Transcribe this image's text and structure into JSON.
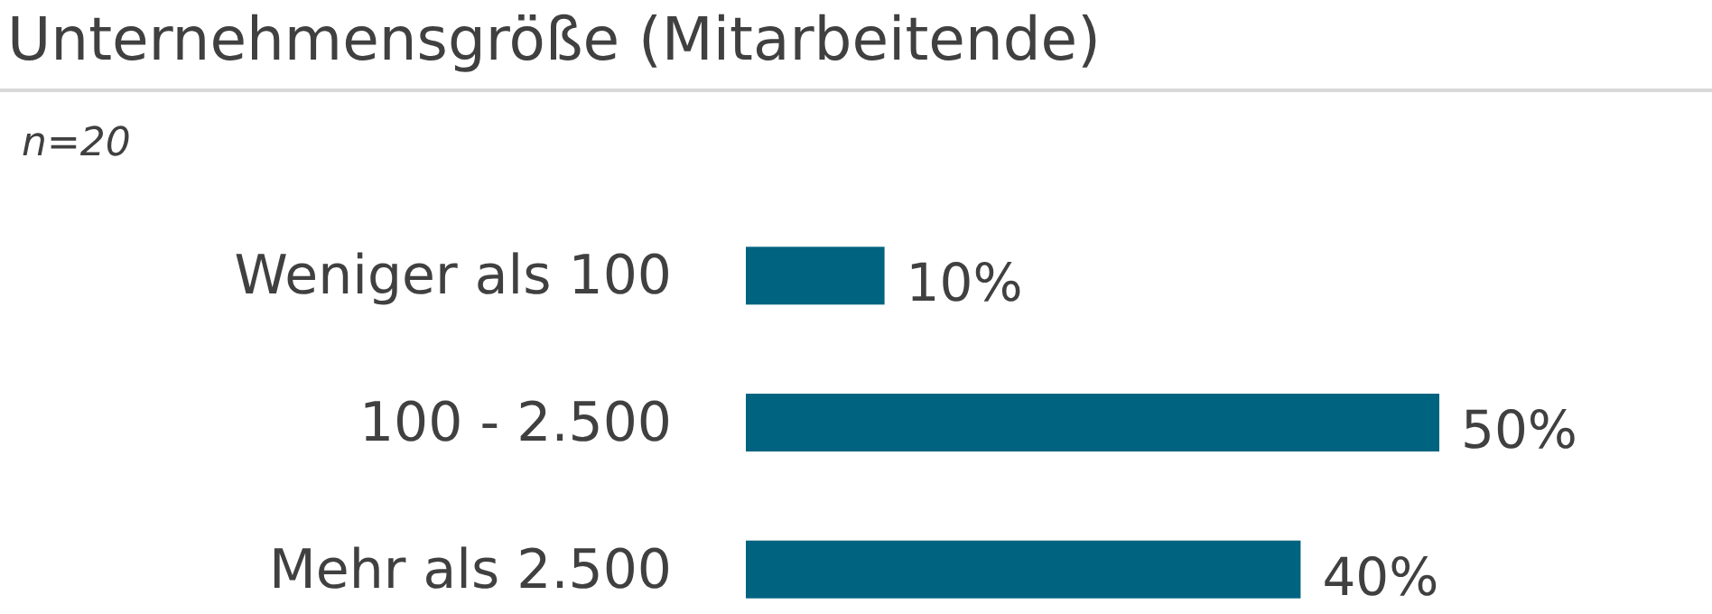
{
  "chart_data": {
    "type": "bar",
    "orientation": "horizontal",
    "title": "Unternehmensgröße (Mitarbeitende)",
    "subtitle": "n=20",
    "categories": [
      "Weniger als 100",
      "100 - 2.500",
      "Mehr als 2.500"
    ],
    "values": [
      10,
      50,
      40
    ],
    "value_labels": [
      "10%",
      "50%",
      "40%"
    ],
    "color": "#00637f"
  }
}
